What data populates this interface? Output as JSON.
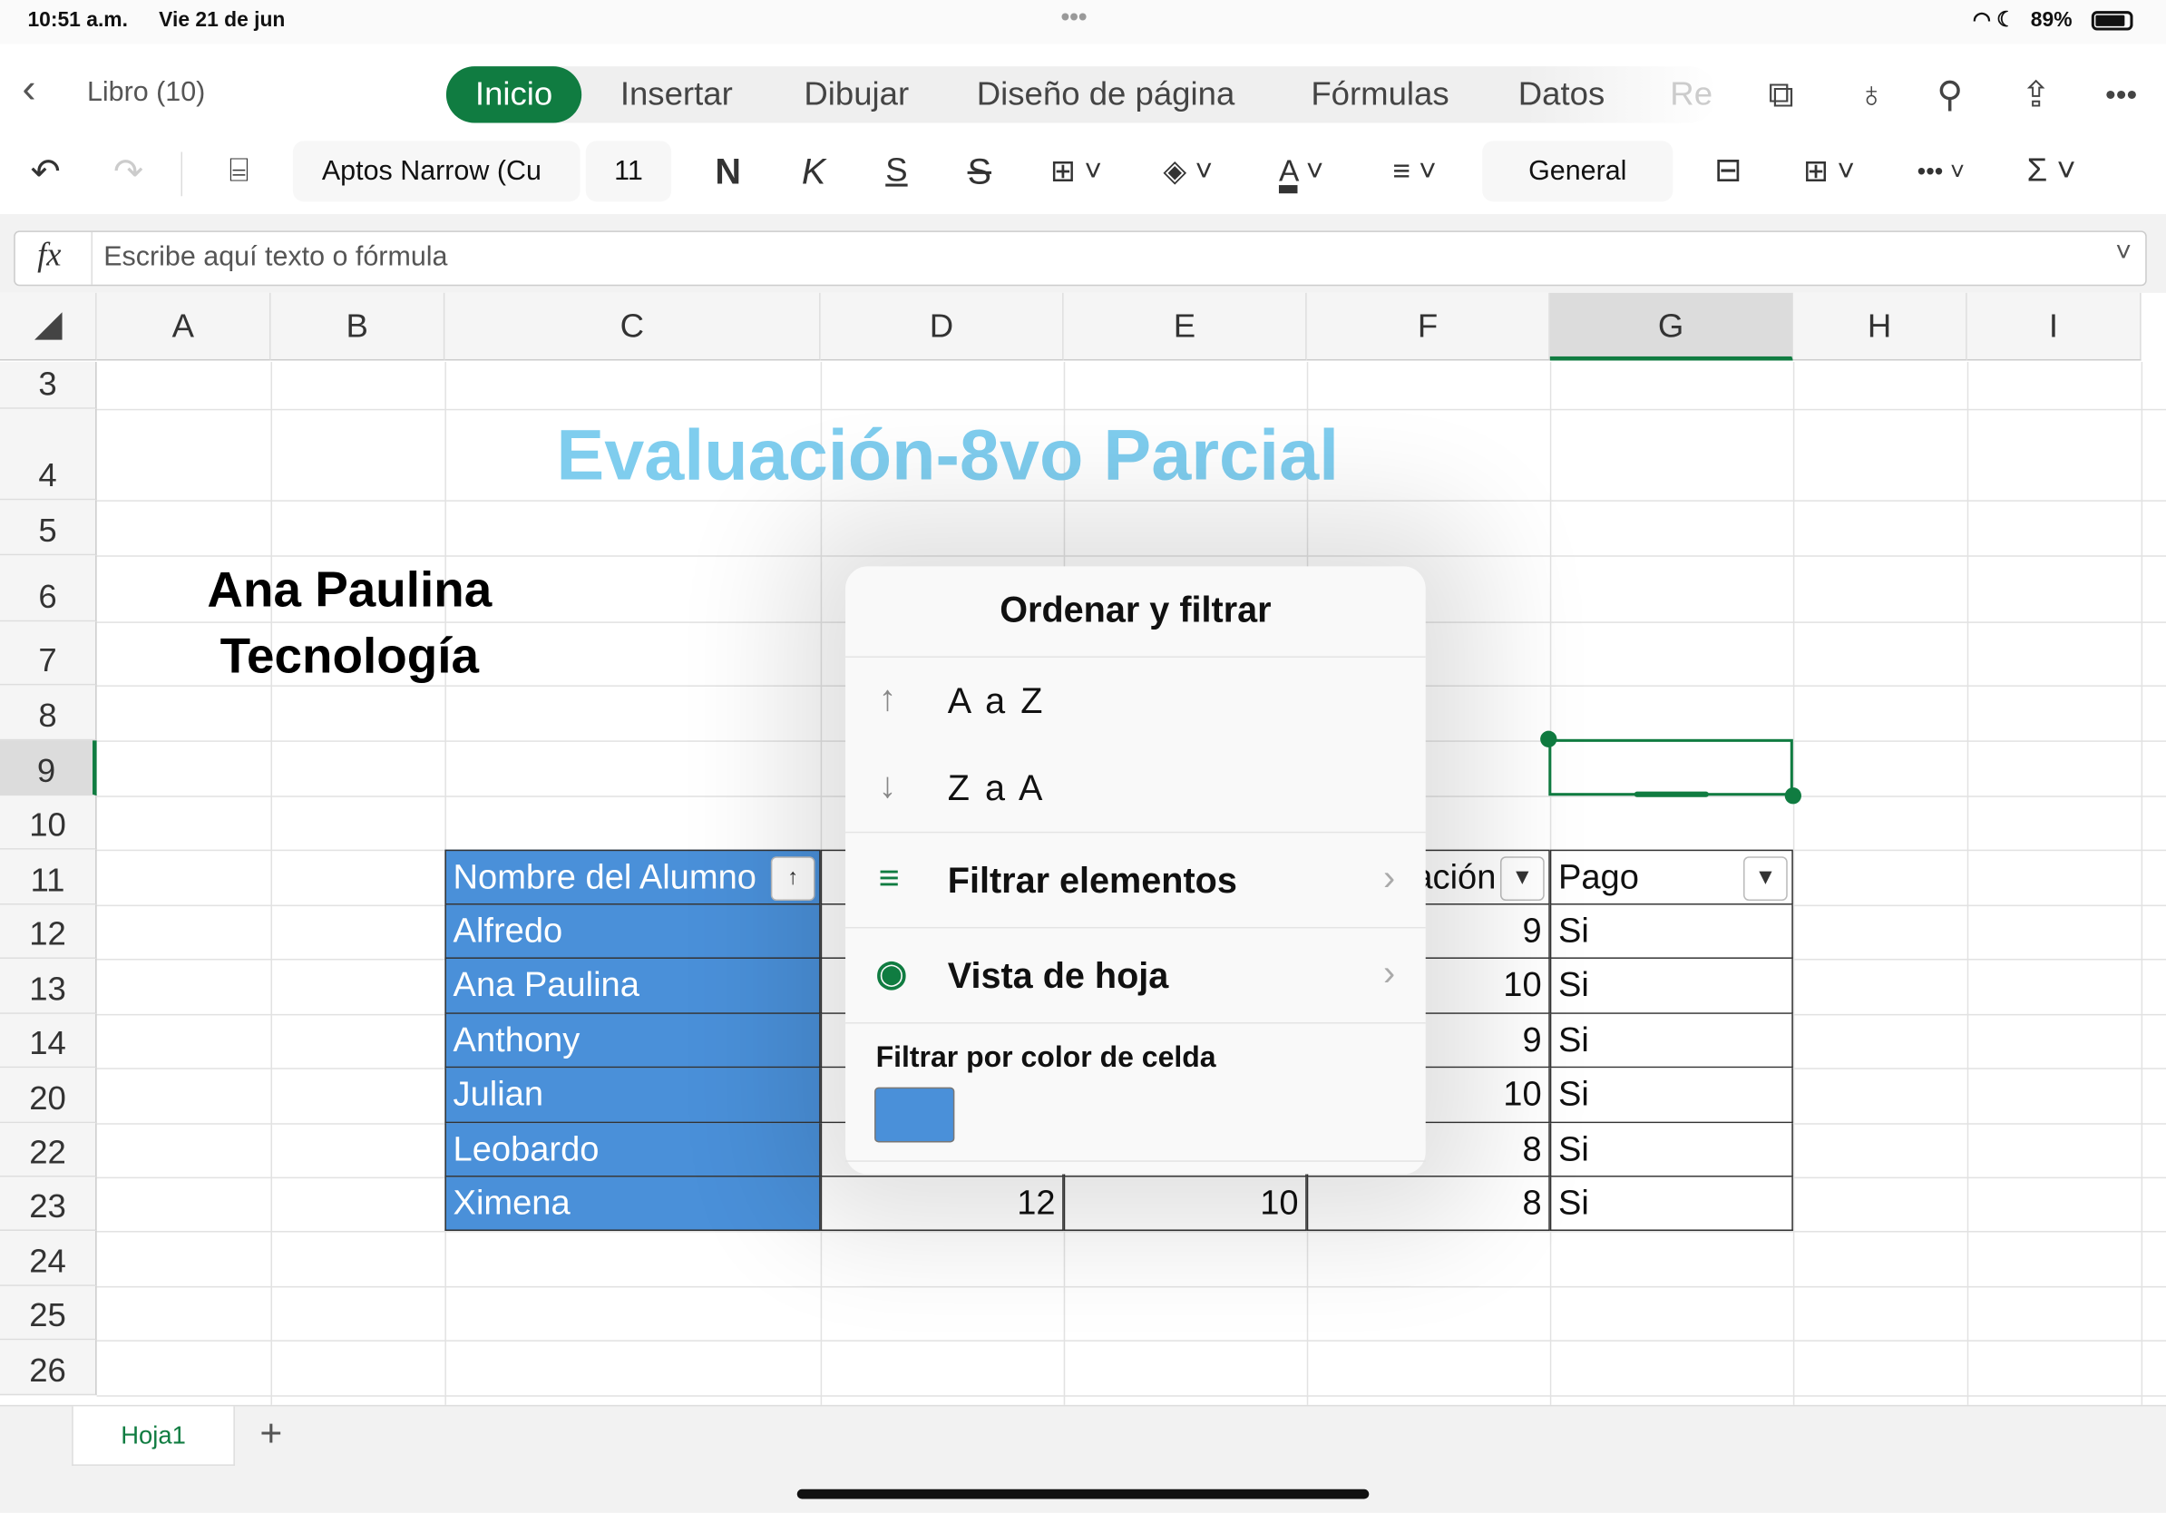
{
  "status": {
    "time": "10:51 a.m.",
    "date": "Vie 21 de jun",
    "battery": "89%"
  },
  "header": {
    "back_label": "Libro (10)",
    "tabs": [
      {
        "label": "Inicio",
        "active": true
      },
      {
        "label": "Insertar"
      },
      {
        "label": "Dibujar"
      },
      {
        "label": "Diseño de página"
      },
      {
        "label": "Fórmulas"
      },
      {
        "label": "Datos"
      },
      {
        "label": "Re"
      }
    ]
  },
  "toolbar": {
    "font_name": "Aptos Narrow (Cu",
    "font_size": "11",
    "bold": "N",
    "italic": "K",
    "underline": "S",
    "strike": "S",
    "number_format": "General"
  },
  "formula": {
    "fx": "fx",
    "placeholder": "Escribe aquí texto o fórmula"
  },
  "grid": {
    "columns": [
      "A",
      "B",
      "C",
      "D",
      "E",
      "F",
      "G",
      "H",
      "I"
    ],
    "selected_column": "G",
    "selected_row": "9",
    "rows": [
      "3",
      "4",
      "5",
      "6",
      "7",
      "8",
      "9",
      "10",
      "11",
      "12",
      "13",
      "14",
      "20",
      "22",
      "23",
      "24",
      "25",
      "26"
    ],
    "title": "Evaluación-8vo Parcial",
    "title_color": "#7fcdee",
    "name": "Ana Paulina",
    "subject": "Tecnología",
    "table": {
      "header_fill": "#4a90d9",
      "headers": {
        "C": "Nombre del Alumno",
        "F": "ación",
        "G": "Pago"
      },
      "rows": [
        {
          "C": "Alfredo",
          "D": "",
          "E": "",
          "F": "9",
          "G": "Si"
        },
        {
          "C": "Ana Paulina",
          "D": "",
          "E": "",
          "F": "10",
          "G": "Si"
        },
        {
          "C": "Anthony",
          "D": "",
          "E": "",
          "F": "9",
          "G": "Si"
        },
        {
          "C": "Julian",
          "D": "",
          "E": "",
          "F": "10",
          "G": "Si"
        },
        {
          "C": "Leobardo",
          "D": "",
          "E": "",
          "F": "8",
          "G": "Si"
        },
        {
          "C": "Ximena",
          "D": "12",
          "E": "10",
          "F": "8",
          "G": "Si"
        }
      ]
    }
  },
  "popup": {
    "title": "Ordenar y filtrar",
    "sort_asc": "A a Z",
    "sort_desc": "Z a A",
    "filter_items": "Filtrar elementos",
    "sheet_view": "Vista de hoja",
    "filter_color_label": "Filtrar por color de celda",
    "swatch_color": "#4a90d9"
  },
  "sheets": [
    {
      "label": "Hoja1",
      "active": true
    }
  ],
  "accent": "#107c41"
}
